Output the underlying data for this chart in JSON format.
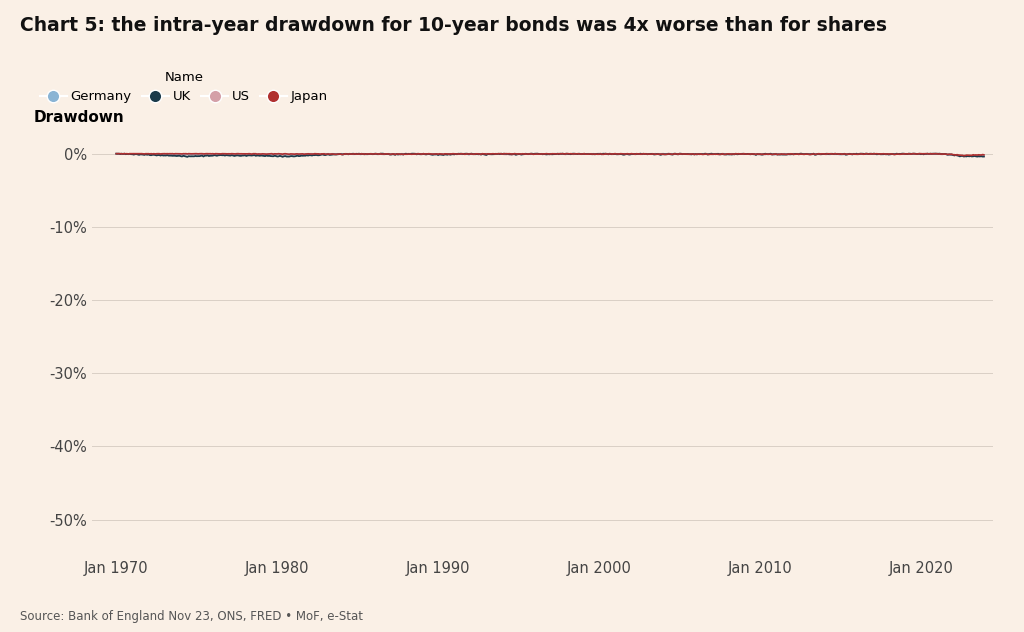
{
  "title": "Chart 5: the intra-year drawdown for 10-year bonds was 4x worse than for shares",
  "ylabel": "Drawdown",
  "background_color": "#faf0e6",
  "colors": {
    "Germany": "#8ab4d4",
    "UK": "#1a3a4a",
    "US": "#d4a0a8",
    "Japan": "#b03030"
  },
  "ylim": [
    -55,
    2
  ],
  "yticks": [
    0,
    -10,
    -20,
    -30,
    -40,
    -50
  ],
  "source_text": "Source: Bank of England Nov 23, ONS, FRED • MoF, e-Stat",
  "legend_title": "Name",
  "series_names": [
    "Germany",
    "UK",
    "US",
    "Japan"
  ]
}
